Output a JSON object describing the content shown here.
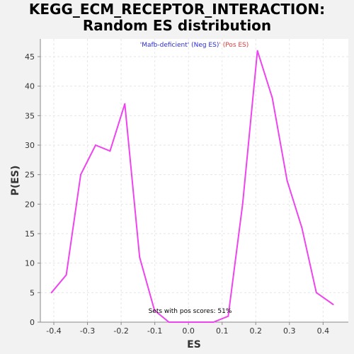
{
  "title_line1": "KEGG_ECM_RECEPTOR_INTERACTION:",
  "title_line2": "Random ES distribution",
  "legend": {
    "neg_label": "'Mafb-deficient' (Neg ES)",
    "separator": "'",
    "pos_label": " (Pos ES)",
    "neg_color": "#2b2bd9",
    "pos_color": "#e03a3a"
  },
  "annotation": "Sets with pos scores: 51%",
  "colors": {
    "line": "#ee44ee",
    "plot_background": "#ffffff",
    "page_background": "#f2f2f2"
  },
  "chart_data": {
    "type": "line",
    "title": "KEGG_ECM_RECEPTOR_INTERACTION: Random ES distribution",
    "xlabel": "ES",
    "ylabel": "P(ES)",
    "xlim": [
      -0.44,
      0.475
    ],
    "ylim": [
      0,
      48
    ],
    "x_ticks": [
      -0.4,
      -0.3,
      -0.2,
      -0.1,
      0.0,
      0.1,
      0.2,
      0.3,
      0.4
    ],
    "x_tick_labels": [
      "-0.4",
      "-0.3",
      "-0.2",
      "-0.1",
      "0.0",
      "0.1",
      "0.2",
      "0.3",
      "0.4"
    ],
    "y_ticks": [
      0,
      5,
      10,
      15,
      20,
      25,
      30,
      35,
      40,
      45
    ],
    "y_tick_labels": [
      "0",
      "5",
      "10",
      "15",
      "20",
      "25",
      "30",
      "35",
      "40",
      "45"
    ],
    "grid": true,
    "series": [
      {
        "x": [
          -0.407,
          -0.363,
          -0.32,
          -0.276,
          -0.233,
          -0.189,
          -0.145,
          -0.101,
          -0.058,
          -0.014,
          0.03,
          0.074,
          0.118,
          0.161,
          0.205,
          0.249,
          0.293,
          0.337,
          0.38,
          0.43
        ],
        "y": [
          5,
          8,
          25,
          30,
          29,
          37,
          11,
          2,
          0,
          0,
          0,
          0,
          1,
          20,
          46,
          38,
          24,
          16,
          5,
          3
        ]
      }
    ]
  }
}
